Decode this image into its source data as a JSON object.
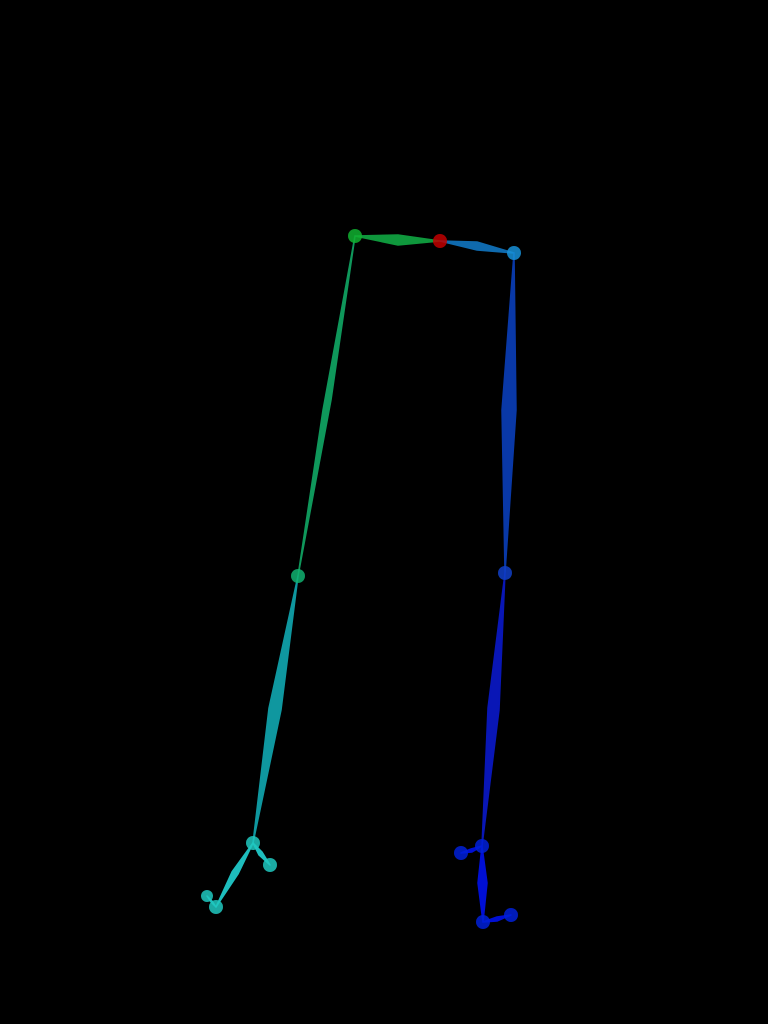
{
  "scene": {
    "background_color": "#000000",
    "figure": "pose-skeleton-lower-body"
  },
  "skeleton": {
    "joint_colors": {
      "pelvis": "#c00000",
      "left_hip": "#10b030",
      "right_hip": "#1890d8",
      "left_knee": "#10b070",
      "right_knee": "#1040c8",
      "left_ankle": "#20c8c0",
      "right_ankle": "#0020d8"
    },
    "limbs": [
      {
        "name": "left-hip-segment",
        "color": "#10a040"
      },
      {
        "name": "right-hip-segment",
        "color": "#1070b8"
      },
      {
        "name": "left-thigh",
        "color": "#10a060"
      },
      {
        "name": "right-thigh",
        "color": "#0a3cb0"
      },
      {
        "name": "left-shin",
        "color": "#10a0a8"
      },
      {
        "name": "right-shin",
        "color": "#0a18c0"
      },
      {
        "name": "left-foot",
        "color": "#20c8c8"
      },
      {
        "name": "right-foot",
        "color": "#0010e0"
      }
    ]
  }
}
